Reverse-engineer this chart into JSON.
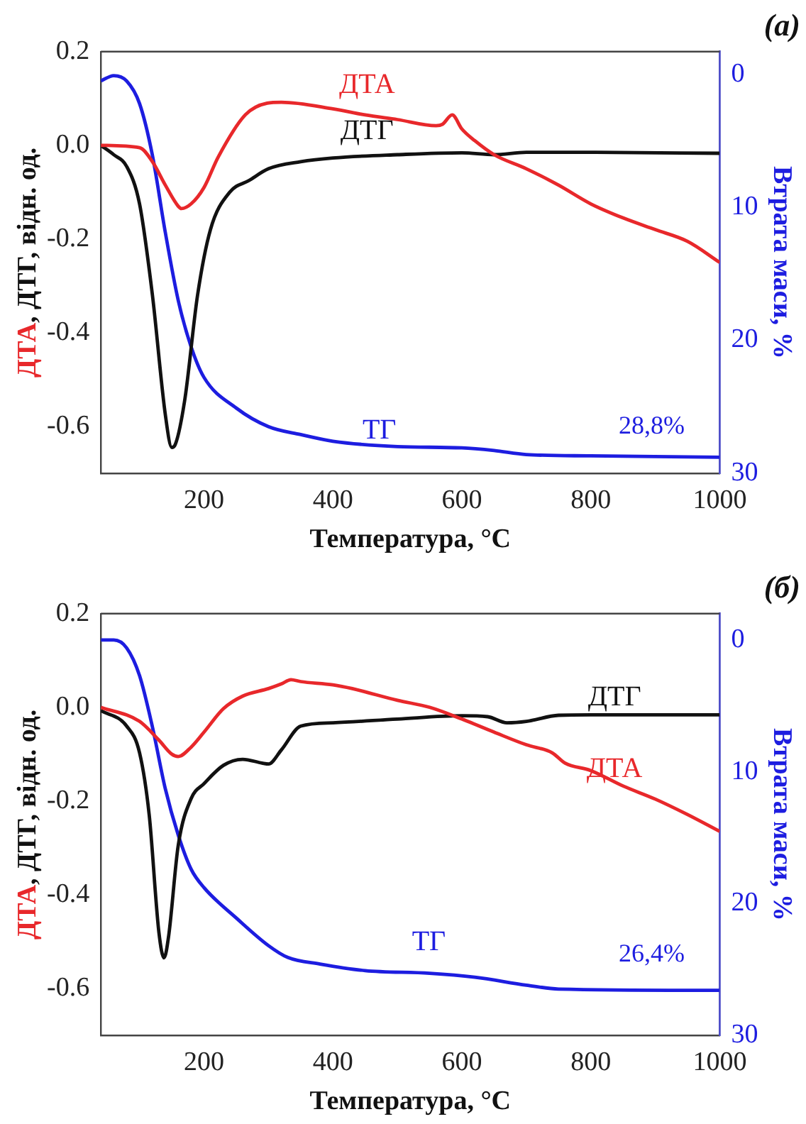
{
  "chart_data": [
    {
      "type": "line",
      "title": "(а)",
      "xlabel": "Температура, °C",
      "ylabel": "ДТА, ДТГ, відн. од.",
      "y2label": "Втрата маси, %",
      "xlim": [
        40,
        1000
      ],
      "xticks": [
        200,
        400,
        600,
        800,
        1000
      ],
      "ylim": [
        -0.7,
        0.2
      ],
      "yticks": [
        {
          "value": -0.6,
          "label": "-0.6"
        },
        {
          "value": -0.4,
          "label": "-0.4"
        },
        {
          "value": -0.2,
          "label": "-0.2"
        },
        {
          "value": 0,
          "label": "0.0"
        },
        {
          "value": 0.2,
          "label": "0.2"
        }
      ],
      "y2lim": [
        30,
        -1.7
      ],
      "y2ticks": [
        0,
        10,
        20,
        30
      ],
      "grid": false,
      "legend": false,
      "annotations": [
        "28,8%"
      ],
      "series": [
        {
          "name": "ДТА",
          "color": "#e8282b",
          "x": [
            40,
            100,
            120,
            140,
            160,
            165,
            180,
            200,
            222,
            264,
            298,
            320,
            400,
            450,
            500,
            560,
            570,
            585,
            600,
            620,
            650,
            700,
            750,
            800,
            850,
            900,
            950,
            1000
          ],
          "values": [
            0.0,
            -0.005,
            -0.035,
            -0.085,
            -0.13,
            -0.135,
            -0.125,
            -0.09,
            -0.025,
            0.065,
            0.09,
            0.092,
            0.078,
            0.065,
            0.055,
            0.042,
            0.045,
            0.065,
            0.035,
            0.01,
            -0.02,
            -0.05,
            -0.085,
            -0.125,
            -0.155,
            -0.18,
            -0.205,
            -0.25
          ]
        },
        {
          "name": "ДТГ",
          "color": "#111111",
          "x": [
            40,
            60,
            80,
            100,
            120,
            140,
            150,
            155,
            170,
            190,
            210,
            240,
            270,
            300,
            350,
            400,
            500,
            600,
            650,
            700,
            800,
            1000
          ],
          "values": [
            0.0,
            -0.02,
            -0.045,
            -0.125,
            -0.32,
            -0.575,
            -0.645,
            -0.64,
            -0.545,
            -0.32,
            -0.18,
            -0.1,
            -0.075,
            -0.05,
            -0.035,
            -0.027,
            -0.02,
            -0.016,
            -0.02,
            -0.015,
            -0.015,
            -0.017
          ]
        },
        {
          "name": "ТГ",
          "color": "#1d1de0",
          "axis": "y2",
          "x": [
            40,
            60,
            80,
            100,
            120,
            140,
            160,
            180,
            200,
            250,
            300,
            350,
            400,
            500,
            600,
            650,
            700,
            800,
            1000
          ],
          "values": [
            0.5,
            0.1,
            0.5,
            2.2,
            6.1,
            11.9,
            17,
            20.5,
            22.8,
            25.1,
            26.5,
            27.1,
            27.6,
            28.0,
            28.1,
            28.3,
            28.6,
            28.7,
            28.8
          ]
        }
      ]
    },
    {
      "type": "line",
      "title": "(б)",
      "xlabel": "Температура, °C",
      "ylabel": "ДТА, ДТГ, відн. од.",
      "y2label": "Втрата маси, %",
      "xlim": [
        40,
        1000
      ],
      "xticks": [
        200,
        400,
        600,
        800,
        1000
      ],
      "ylim": [
        -0.7,
        0.2
      ],
      "yticks": [
        {
          "value": -0.6,
          "label": "-0.6"
        },
        {
          "value": -0.4,
          "label": "-0.4"
        },
        {
          "value": -0.2,
          "label": "-0.2"
        },
        {
          "value": 0,
          "label": "0.0"
        },
        {
          "value": 0.2,
          "label": "0.2"
        }
      ],
      "y2lim": [
        30,
        -2
      ],
      "y2ticks": [
        0,
        10,
        20,
        30
      ],
      "grid": false,
      "legend": false,
      "annotations": [
        "26,4%"
      ],
      "series": [
        {
          "name": "ДТА",
          "color": "#e8282b",
          "x": [
            40,
            100,
            130,
            150,
            160,
            180,
            200,
            230,
            260,
            300,
            320,
            335,
            350,
            400,
            430,
            500,
            550,
            600,
            650,
            700,
            740,
            760,
            800,
            850,
            900,
            950,
            1000
          ],
          "values": [
            0.0,
            -0.03,
            -0.07,
            -0.1,
            -0.105,
            -0.085,
            -0.053,
            -0.003,
            0.024,
            0.04,
            0.05,
            0.059,
            0.055,
            0.048,
            0.04,
            0.015,
            0.0,
            -0.025,
            -0.053,
            -0.08,
            -0.097,
            -0.119,
            -0.135,
            -0.168,
            -0.196,
            -0.229,
            -0.265
          ]
        },
        {
          "name": "ДТГ",
          "color": "#111111",
          "x": [
            40,
            80,
            100,
            115,
            130,
            138,
            145,
            160,
            180,
            200,
            230,
            260,
            290,
            300,
            320,
            350,
            400,
            500,
            600,
            640,
            670,
            700,
            750,
            800,
            1000
          ],
          "values": [
            -0.007,
            -0.04,
            -0.097,
            -0.23,
            -0.48,
            -0.535,
            -0.49,
            -0.295,
            -0.195,
            -0.163,
            -0.124,
            -0.111,
            -0.119,
            -0.121,
            -0.091,
            -0.04,
            -0.033,
            -0.025,
            -0.018,
            -0.02,
            -0.033,
            -0.03,
            -0.017,
            -0.016,
            -0.016
          ]
        },
        {
          "name": "ТГ",
          "color": "#1d1de0",
          "axis": "y2",
          "x": [
            40,
            60,
            80,
            100,
            120,
            140,
            160,
            180,
            200,
            250,
            300,
            330,
            380,
            450,
            550,
            620,
            700,
            750,
            1000
          ],
          "values": [
            0,
            0,
            0.6,
            2.7,
            6.6,
            11.3,
            14.8,
            17.4,
            18.8,
            21.1,
            23.2,
            24.1,
            24.6,
            25.1,
            25.3,
            25.6,
            26.2,
            26.5,
            26.6
          ]
        }
      ]
    }
  ]
}
